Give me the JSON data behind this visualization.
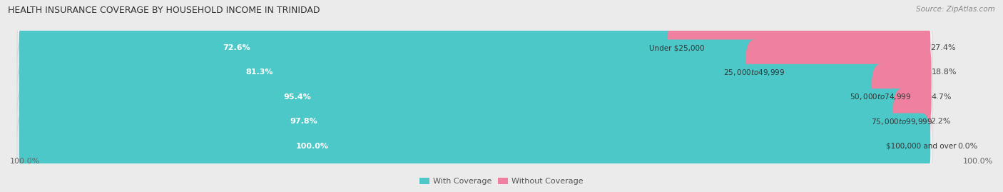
{
  "title": "HEALTH INSURANCE COVERAGE BY HOUSEHOLD INCOME IN TRINIDAD",
  "source": "Source: ZipAtlas.com",
  "categories": [
    "Under $25,000",
    "$25,000 to $49,999",
    "$50,000 to $74,999",
    "$75,000 to $99,999",
    "$100,000 and over"
  ],
  "with_coverage": [
    72.6,
    81.3,
    95.4,
    97.8,
    100.0
  ],
  "without_coverage": [
    27.4,
    18.8,
    4.7,
    2.2,
    0.0
  ],
  "color_with": "#4dc8c8",
  "color_without": "#f080a0",
  "bg_color": "#ebebeb",
  "bar_bg": "#f8f8f8",
  "row_sep_color": "#d8d8d8",
  "title_fontsize": 9,
  "label_fontsize": 8,
  "tick_fontsize": 8,
  "source_fontsize": 7.5,
  "bar_height": 0.68,
  "figsize": [
    14.06,
    2.69
  ],
  "dpi": 100,
  "total_width": 100
}
